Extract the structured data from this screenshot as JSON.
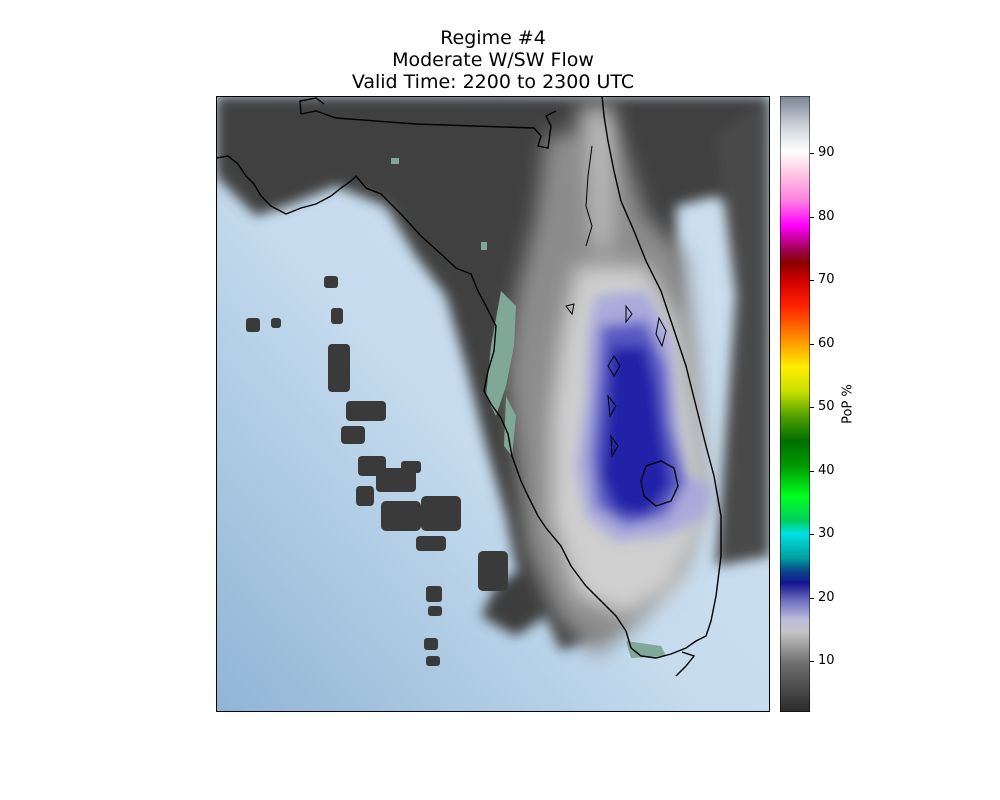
{
  "title": {
    "line1": "Regime #4",
    "line2": "Moderate W/SW Flow",
    "line3": "Valid Time: 2200 to 2300 UTC"
  },
  "colorbar": {
    "label": "PoP %",
    "ticks": [
      "10",
      "20",
      "30",
      "40",
      "50",
      "60",
      "70",
      "80",
      "90"
    ],
    "min": 2,
    "max": 99
  },
  "colors": {
    "ocean": "#c6dcee",
    "ocean_dark": "#93b8d8",
    "land_low": "#3a3a3a",
    "land_mid": "#8a8a8a",
    "land_high": "#d6d6d6",
    "pop_blue": "#1a1aa0",
    "pop_light_blue": "#a0a0d8",
    "wetland": "#7fa898"
  }
}
